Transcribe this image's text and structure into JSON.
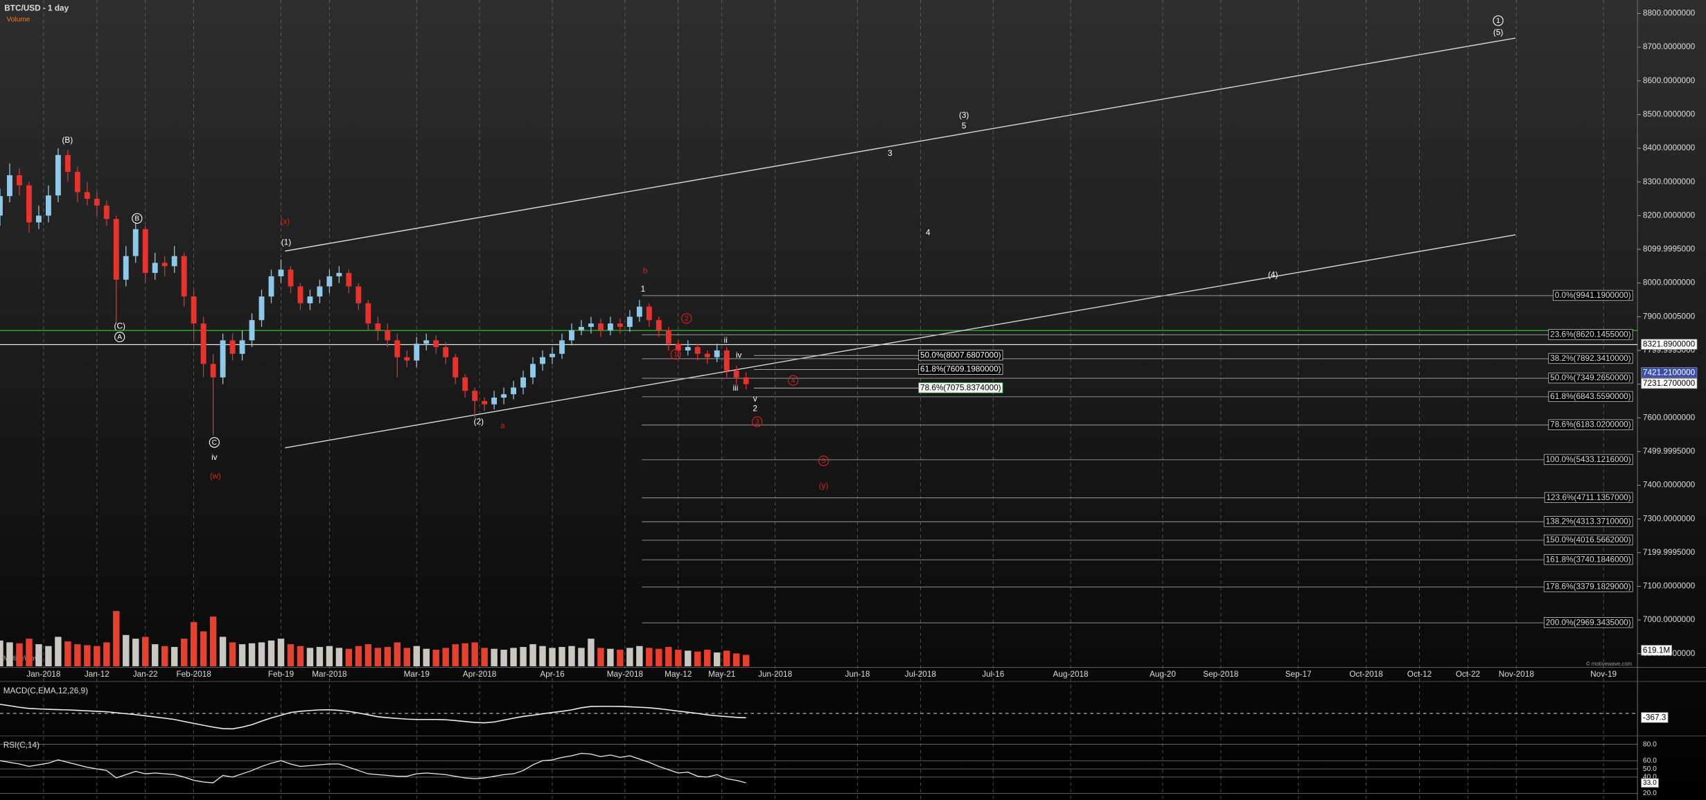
{
  "chart_data": {
    "type": "candlestick",
    "title": "BTC/USD - 1 day",
    "x": [
      "2017-12-23",
      "2017-12-25",
      "2017-12-27",
      "2017-12-29",
      "2017-12-31",
      "2018-01-02",
      "2018-01-04",
      "2018-01-06",
      "2018-01-08",
      "2018-01-10",
      "2018-01-12",
      "2018-01-14",
      "2018-01-16",
      "2018-01-18",
      "2018-01-20",
      "2018-01-22",
      "2018-01-24",
      "2018-01-26",
      "2018-01-28",
      "2018-01-30",
      "2018-02-01",
      "2018-02-03",
      "2018-02-05",
      "2018-02-07",
      "2018-02-09",
      "2018-02-11",
      "2018-02-13",
      "2018-02-15",
      "2018-02-17",
      "2018-02-19",
      "2018-02-21",
      "2018-02-23",
      "2018-02-25",
      "2018-02-27",
      "2018-03-01",
      "2018-03-03",
      "2018-03-05",
      "2018-03-07",
      "2018-03-09",
      "2018-03-11",
      "2018-03-13",
      "2018-03-15",
      "2018-03-17",
      "2018-03-19",
      "2018-03-21",
      "2018-03-23",
      "2018-03-25",
      "2018-03-27",
      "2018-03-29",
      "2018-03-31",
      "2018-04-02",
      "2018-04-04",
      "2018-04-06",
      "2018-04-08",
      "2018-04-10",
      "2018-04-12",
      "2018-04-14",
      "2018-04-16",
      "2018-04-18",
      "2018-04-20",
      "2018-04-22",
      "2018-04-24",
      "2018-04-26",
      "2018-04-28",
      "2018-04-30",
      "2018-05-02",
      "2018-05-04",
      "2018-05-06",
      "2018-05-08",
      "2018-05-10",
      "2018-05-12",
      "2018-05-14",
      "2018-05-16",
      "2018-05-18",
      "2018-05-20",
      "2018-05-22",
      "2018-05-24",
      "2018-05-26"
    ],
    "open": [
      8200,
      8258,
      8320,
      8290,
      8180,
      8200,
      8260,
      8380,
      8330,
      8270,
      8250,
      8230,
      8190,
      8010,
      8080,
      8160,
      8030,
      8060,
      8050,
      8080,
      7960,
      7880,
      7760,
      7720,
      7830,
      7790,
      7830,
      7890,
      7960,
      8020,
      8040,
      7990,
      7940,
      7960,
      7990,
      8020,
      8030,
      7990,
      7940,
      7880,
      7860,
      7830,
      7780,
      7770,
      7820,
      7830,
      7810,
      7780,
      7720,
      7680,
      7650,
      7640,
      7660,
      7670,
      7690,
      7720,
      7760,
      7780,
      7790,
      7830,
      7860,
      7870,
      7880,
      7860,
      7880,
      7870,
      7900,
      7930,
      7890,
      7860,
      7820,
      7800,
      7810,
      7790,
      7780,
      7800,
      7740,
      7720
    ],
    "high": [
      8280,
      8355,
      8340,
      8300,
      8230,
      8290,
      8400,
      8395,
      8345,
      8300,
      8270,
      8245,
      8200,
      8110,
      8180,
      8170,
      8090,
      8080,
      8110,
      8090,
      7980,
      7900,
      7790,
      7850,
      7850,
      7860,
      7910,
      7980,
      8040,
      8070,
      8050,
      8000,
      7980,
      8010,
      8040,
      8050,
      8040,
      8000,
      7950,
      7900,
      7880,
      7850,
      7800,
      7840,
      7850,
      7845,
      7825,
      7790,
      7730,
      7690,
      7660,
      7680,
      7690,
      7710,
      7740,
      7780,
      7800,
      7810,
      7850,
      7880,
      7890,
      7900,
      7895,
      7900,
      7895,
      7920,
      7950,
      7940,
      7900,
      7870,
      7830,
      7830,
      7820,
      7800,
      7820,
      7810,
      7755,
      7735
    ],
    "low": [
      8170,
      8240,
      8260,
      8150,
      8160,
      8180,
      8240,
      8300,
      8240,
      8230,
      8200,
      8170,
      7880,
      7990,
      8060,
      8000,
      8010,
      8020,
      8030,
      7930,
      7830,
      7720,
      7548,
      7700,
      7770,
      7770,
      7810,
      7870,
      7940,
      8000,
      7970,
      7920,
      7920,
      7940,
      7970,
      8000,
      7970,
      7920,
      7860,
      7830,
      7810,
      7720,
      7750,
      7750,
      7800,
      7790,
      7760,
      7700,
      7660,
      7600,
      7620,
      7625,
      7640,
      7655,
      7670,
      7700,
      7740,
      7760,
      7775,
      7815,
      7845,
      7850,
      7840,
      7845,
      7850,
      7855,
      7885,
      7870,
      7840,
      7800,
      7780,
      7785,
      7770,
      7760,
      7765,
      7720,
      7700,
      7685
    ],
    "close": [
      8258,
      8320,
      8290,
      8180,
      8200,
      8260,
      8380,
      8330,
      8270,
      8250,
      8230,
      8190,
      8010,
      8080,
      8160,
      8030,
      8060,
      8050,
      8080,
      7960,
      7880,
      7760,
      7720,
      7830,
      7790,
      7830,
      7890,
      7960,
      8020,
      8040,
      7990,
      7940,
      7960,
      7990,
      8020,
      8030,
      7990,
      7940,
      7880,
      7860,
      7830,
      7780,
      7770,
      7820,
      7830,
      7810,
      7780,
      7720,
      7680,
      7650,
      7640,
      7660,
      7670,
      7690,
      7720,
      7760,
      7780,
      7790,
      7830,
      7860,
      7870,
      7880,
      7860,
      7880,
      7870,
      7900,
      7930,
      7890,
      7860,
      7820,
      7800,
      7810,
      7790,
      7780,
      7800,
      7740,
      7720,
      7700
    ],
    "up_color": "#8ec9ea",
    "down_color": "#e8322d",
    "xlim": [
      "2017-12-23",
      "2018-11-26"
    ],
    "xticks": [
      {
        "value": "2018-01-01",
        "label": "Jan-2018"
      },
      {
        "value": "2018-01-12",
        "label": "Jan-12"
      },
      {
        "value": "2018-01-22",
        "label": "Jan-22"
      },
      {
        "value": "2018-02-01",
        "label": "Feb-2018"
      },
      {
        "value": "2018-02-19",
        "label": "Feb-19"
      },
      {
        "value": "2018-03-01",
        "label": "Mar-2018"
      },
      {
        "value": "2018-03-19",
        "label": "Mar-19"
      },
      {
        "value": "2018-04-01",
        "label": "Apr-2018"
      },
      {
        "value": "2018-04-16",
        "label": "Apr-16"
      },
      {
        "value": "2018-05-01",
        "label": "May-2018"
      },
      {
        "value": "2018-05-12",
        "label": "May-12"
      },
      {
        "value": "2018-05-21",
        "label": "May-21"
      },
      {
        "value": "2018-06-01",
        "label": "Jun-2018"
      },
      {
        "value": "2018-06-18",
        "label": "Jun-18"
      },
      {
        "value": "2018-07-01",
        "label": "Jul-2018"
      },
      {
        "value": "2018-07-16",
        "label": "Jul-16"
      },
      {
        "value": "2018-08-01",
        "label": "Aug-2018"
      },
      {
        "value": "2018-08-20",
        "label": "Aug-20"
      },
      {
        "value": "2018-09-01",
        "label": "Sep-2018"
      },
      {
        "value": "2018-09-17",
        "label": "Sep-17"
      },
      {
        "value": "2018-10-01",
        "label": "Oct-2018"
      },
      {
        "value": "2018-10-12",
        "label": "Oct-12"
      },
      {
        "value": "2018-10-22",
        "label": "Oct-22"
      },
      {
        "value": "2018-11-01",
        "label": "Nov-2018"
      },
      {
        "value": "2018-11-19",
        "label": "Nov-19"
      }
    ],
    "ylim": [
      6860,
      8840
    ],
    "yticks": [
      {
        "value": 8800,
        "label": "8800.0000000"
      },
      {
        "value": 8700,
        "label": "8700.0000000"
      },
      {
        "value": 8600,
        "label": "8600.0000000"
      },
      {
        "value": 8500,
        "label": "8500.0000000"
      },
      {
        "value": 8400,
        "label": "8400.0000000"
      },
      {
        "value": 8300,
        "label": "8300.0000000"
      },
      {
        "value": 8200,
        "label": "8200.0000000"
      },
      {
        "value": 8099.9995,
        "label": "8099.9995000"
      },
      {
        "value": 8000,
        "label": "8000.0000000"
      },
      {
        "value": 7900.0005,
        "label": "7900.0005000"
      },
      {
        "value": 7799.9995,
        "label": "7799.9995000"
      },
      {
        "value": 7700,
        "label": "7700.0000000"
      },
      {
        "value": 7600,
        "label": "7600.0000000"
      },
      {
        "value": 7499.9995,
        "label": "7499.9995000"
      },
      {
        "value": 7400,
        "label": "7400.0000000"
      },
      {
        "value": 7300,
        "label": "7300.0000000"
      },
      {
        "value": 7199.9995,
        "label": "7199.9995000"
      },
      {
        "value": 7100,
        "label": "7100.0000000"
      },
      {
        "value": 7000,
        "label": "7000.0000000"
      },
      {
        "value": 6900,
        "label": "6900.0000000"
      }
    ],
    "grid": true,
    "volume": {
      "title": "Volume",
      "values": [
        1400,
        1300,
        1250,
        1500,
        1200,
        1100,
        1600,
        1350,
        1200,
        1150,
        1100,
        1300,
        3000,
        1700,
        1500,
        1600,
        1200,
        1100,
        1050,
        1500,
        2400,
        1900,
        2700,
        1600,
        1300,
        1200,
        1250,
        1300,
        1400,
        1500,
        1200,
        1100,
        1000,
        1050,
        1100,
        1000,
        950,
        1100,
        1200,
        1000,
        1050,
        1300,
        1000,
        1100,
        950,
        900,
        1000,
        1200,
        1250,
        1300,
        1000,
        950,
        900,
        1000,
        1050,
        1200,
        1100,
        1000,
        1050,
        1100,
        1000,
        1500,
        1000,
        950,
        900,
        1000,
        1100,
        1000,
        950,
        1050,
        900,
        850,
        800,
        900,
        750,
        850,
        700,
        619.1
      ],
      "ylim": [
        0,
        3600
      ],
      "last_label": "619.1M",
      "up_color": "#c8c8c0",
      "down_color": "#e8402d",
      "title_color": "#e8801a"
    },
    "macd": {
      "title": "MACD(C,EMA,12,26,9)",
      "values": [
        770,
        650,
        520,
        420,
        380,
        350,
        320,
        300,
        260,
        220,
        180,
        140,
        60,
        -20,
        -100,
        -200,
        -300,
        -400,
        -510,
        -680,
        -840,
        -1000,
        -1150,
        -1280,
        -1300,
        -1150,
        -950,
        -650,
        -380,
        -150,
        80,
        180,
        250,
        300,
        310,
        260,
        170,
        40,
        -120,
        -280,
        -360,
        -420,
        -480,
        -510,
        -510,
        -510,
        -530,
        -600,
        -680,
        -760,
        -790,
        -720,
        -560,
        -400,
        -250,
        -150,
        -30,
        80,
        180,
        300,
        480,
        590,
        600,
        600,
        590,
        560,
        520,
        480,
        400,
        300,
        200,
        100,
        0,
        -120,
        -200,
        -270,
        -330,
        -367.3
      ],
      "ylim": [
        -1800,
        2600
      ],
      "color": "#f0f0f0"
    },
    "rsi": {
      "title": "RSI(C,14)",
      "values": [
        60,
        58,
        56,
        53,
        55,
        57,
        61,
        58,
        55,
        52,
        50,
        48,
        39,
        43,
        47,
        44,
        45,
        44,
        43,
        40,
        36,
        34,
        33,
        42,
        40,
        44,
        48,
        53,
        57,
        60,
        56,
        53,
        54,
        55,
        56,
        56,
        52,
        48,
        44,
        43,
        42,
        41,
        41,
        44,
        45,
        44,
        43,
        41,
        39,
        38,
        39,
        41,
        43,
        44,
        48,
        55,
        60,
        61,
        64,
        66,
        69,
        68,
        65,
        67,
        64,
        66,
        62,
        58,
        53,
        49,
        45,
        46,
        41,
        40,
        43,
        38,
        36,
        33
      ],
      "ylim": [
        12,
        89
      ],
      "yticks": [
        {
          "value": 80,
          "label": "80.0"
        },
        {
          "value": 60,
          "label": "60.0"
        },
        {
          "value": 50,
          "label": "50.0"
        },
        {
          "value": 40,
          "label": "40.0"
        },
        {
          "value": 20,
          "label": "20.0"
        }
      ],
      "last_label": "33.0",
      "color": "#f0f0f0"
    },
    "annotations": {
      "price_boxes": [
        "8321.8900000",
        "7421.2100000",
        "7231.2700000"
      ],
      "fib_right": [
        "0.0%(9941.1900000)",
        "23.6%(8620.1455000)",
        "38.2%(7892.3410000)",
        "50.0%(7349.2650000)",
        "61.8%(6843.5590000)",
        "78.6%(6183.0200000)",
        "100.0%(5433.1216000)",
        "123.6%(4711.1357000)",
        "138.2%(4313.3710000)",
        "150.0%(4016.5662000)",
        "161.8%(3740.1846000)",
        "178.6%(3379.1829000)",
        "200.0%(2969.3435000)"
      ],
      "fib_mid": [
        "50.0%(8007.6807000)",
        "61.8%(7609.1980000)",
        "78.6%(7075.8374000)"
      ],
      "wave_labels": [
        {
          "text": "(B)",
          "color": "#ffffff"
        },
        {
          "text": "B",
          "color": "#ffffff",
          "circled": true
        },
        {
          "text": "(C)",
          "color": "#ffffff"
        },
        {
          "text": "A",
          "color": "#ffffff",
          "circled": true
        },
        {
          "text": "C",
          "color": "#ffffff",
          "circled": true
        },
        {
          "text": "iv",
          "color": "#ffffff"
        },
        {
          "text": "(w)",
          "color": "#e0201a"
        },
        {
          "text": "(x)",
          "color": "#e0201a"
        },
        {
          "text": "(1)",
          "color": "#ffffff"
        },
        {
          "text": "(2)",
          "color": "#ffffff"
        },
        {
          "text": "a",
          "color": "#e0201a"
        },
        {
          "text": "b",
          "color": "#e0201a"
        },
        {
          "text": "1",
          "color": "#ffffff"
        },
        {
          "text": "2",
          "color": "#e0201a",
          "circled": true
        },
        {
          "text": "1",
          "color": "#e0201a",
          "circled": true
        },
        {
          "text": "ii",
          "color": "#ffffff"
        },
        {
          "text": "iv",
          "color": "#ffffff"
        },
        {
          "text": "iii",
          "color": "#ffffff"
        },
        {
          "text": "v",
          "color": "#ffffff"
        },
        {
          "text": "2",
          "color": "#ffffff"
        },
        {
          "text": "4",
          "color": "#e0201a",
          "circled": true
        },
        {
          "text": "3",
          "color": "#e0201a",
          "circled": true
        },
        {
          "text": "5",
          "color": "#e0201a",
          "circled": true
        },
        {
          "text": "(y)",
          "color": "#e0201a"
        },
        {
          "text": "3",
          "color": "#ffffff"
        },
        {
          "text": "(3)",
          "color": "#ffffff"
        },
        {
          "text": "5",
          "color": "#ffffff"
        },
        {
          "text": "4",
          "color": "#ffffff"
        },
        {
          "text": "(4)",
          "color": "#ffffff"
        },
        {
          "text": "1",
          "color": "#ffffff",
          "circled": true
        },
        {
          "text": "(5)",
          "color": "#ffffff"
        }
      ],
      "watermark": "MotiveWave",
      "copyright": "© motivewave.com"
    }
  }
}
